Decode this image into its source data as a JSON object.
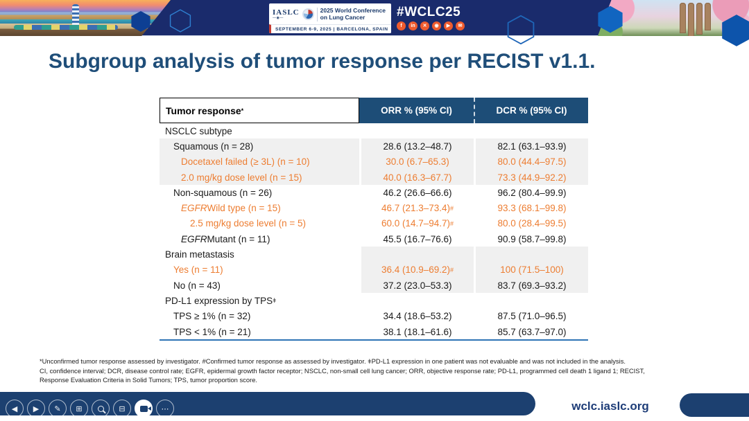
{
  "banner": {
    "logo_iaslc": "IASLC",
    "conference_line1": "2025 World Conference",
    "conference_line2": "on Lung Cancer",
    "date_location": "SEPTEMBER 6-9, 2025  |  BARCELONA, SPAIN",
    "hashtag": "#WCLC25",
    "social_icons": [
      {
        "name": "facebook-icon",
        "glyph": "f"
      },
      {
        "name": "linkedin-icon",
        "glyph": "in"
      },
      {
        "name": "x-twitter-icon",
        "glyph": "✕"
      },
      {
        "name": "instagram-icon",
        "glyph": "◉"
      },
      {
        "name": "youtube-icon",
        "glyph": "▶"
      },
      {
        "name": "share-icon",
        "glyph": "✉"
      }
    ]
  },
  "slide": {
    "title": "Subgroup analysis of tumor response per RECIST v1.1.",
    "table": {
      "col_headers": {
        "col1": "Tumor response",
        "col1_sup": "*",
        "col2": "ORR % (95% CI)",
        "col3": "DCR % (95% CI)"
      },
      "rows": [
        {
          "label": "NSCLC subtype",
          "type": "section",
          "level": 0,
          "band": "none"
        },
        {
          "label": "Squamous (n = 28)",
          "level": 1,
          "band": "full",
          "color": "black",
          "orr": "28.6 (13.2–48.7)",
          "dcr": "82.1 (63.1–93.9)"
        },
        {
          "label": "Docetaxel failed (≥ 3L) (n = 10)",
          "level": 2,
          "band": "full",
          "color": "orange",
          "orr": "30.0 (6.7–65.3)",
          "dcr": "80.0 (44.4–97.5)"
        },
        {
          "label": "2.0 mg/kg dose level (n = 15)",
          "level": 2,
          "band": "full",
          "color": "orange",
          "orr": "40.0 (16.3–67.7)",
          "dcr": "73.3 (44.9–92.2)"
        },
        {
          "label": "Non-squamous (n = 26)",
          "level": 1,
          "band": "none",
          "color": "black",
          "orr": "46.2 (26.6–66.6)",
          "dcr": "96.2 (80.4–99.9)"
        },
        {
          "em": "EGFR",
          "label": " Wild type (n = 15)",
          "level": 2,
          "band": "none",
          "color": "orange",
          "orr": "46.7 (21.3–73.4)",
          "orr_sup": "#",
          "dcr": "93.3 (68.1–99.8)"
        },
        {
          "label": "2.5 mg/kg dose level (n = 5)",
          "level": 3,
          "band": "none",
          "color": "orange",
          "orr": "60.0 (14.7–94.7)",
          "orr_sup": "#",
          "dcr": "80.0 (28.4–99.5)"
        },
        {
          "em": "EGFR",
          "label": " Mutant (n = 11)",
          "level": 2,
          "band": "none",
          "color": "black",
          "orr": "45.5 (16.7–76.6)",
          "dcr": "90.9 (58.7–99.8)"
        },
        {
          "label": "Brain metastasis",
          "type": "section",
          "level": 0,
          "band": "right"
        },
        {
          "label": "Yes (n = 11)",
          "level": 1,
          "band": "right",
          "color": "orange",
          "orr": "36.4 (10.9–69.2)",
          "orr_sup": "#",
          "dcr": "100 (71.5–100)"
        },
        {
          "label": "No (n = 43)",
          "level": 1,
          "band": "right",
          "color": "black",
          "orr": "37.2 (23.0–53.3)",
          "dcr": "83.7 (69.3–93.2)"
        },
        {
          "label": "PD-L1 expression by TPS",
          "label_sup": "ǂ",
          "type": "section",
          "level": 0,
          "band": "none"
        },
        {
          "label": "TPS ≥ 1% (n = 32)",
          "level": 1,
          "band": "none",
          "color": "black",
          "orr": "34.4 (18.6–53.2)",
          "dcr": "87.5 (71.0–96.5)"
        },
        {
          "label": "TPS < 1% (n = 21)",
          "level": 1,
          "band": "none",
          "color": "black",
          "orr": "38.1 (18.1–61.6)",
          "dcr": "85.7 (63.7–97.0)"
        }
      ]
    },
    "footnotes": [
      "*Unconfirmed tumor response assessed by investigator. #Confirmed tumor response as assessed by investigator. ǂPD-L1 expression in one patient was not evaluable and was not included in the analysis.",
      "CI, confidence interval; DCR, disease control rate; EGFR, epidermal growth factor receptor; NSCLC, non-small cell lung cancer; ORR, objective response rate; PD-L1, programmed cell death 1 ligand 1; RECIST,",
      "Response Evaluation Criteria in Solid Tumors; TPS, tumor proportion score."
    ]
  },
  "footer": {
    "url": "wclc.iaslc.org",
    "toolbar": [
      {
        "name": "previous-slide-button",
        "glyph": "◀"
      },
      {
        "name": "next-slide-button",
        "glyph": "▶"
      },
      {
        "name": "pen-tool-button",
        "glyph": "✎"
      },
      {
        "name": "all-slides-button",
        "glyph": "⊞"
      },
      {
        "name": "zoom-tool-button",
        "glyph": "zoom-css"
      },
      {
        "name": "subtitles-button",
        "glyph": "⊟"
      },
      {
        "name": "camera-button",
        "glyph": "camera-css",
        "active": true
      },
      {
        "name": "more-options-button",
        "glyph": "⋯"
      }
    ]
  },
  "colors": {
    "banner_navy": "#1a2b6c",
    "table_header_blue": "#1d4d77",
    "accent_orange": "#ED7D31",
    "band_gray": "#f0f0f0",
    "title_blue": "#1f4e79",
    "footer_navy": "#1c4070",
    "table_bottom_border": "#2e74b5"
  }
}
